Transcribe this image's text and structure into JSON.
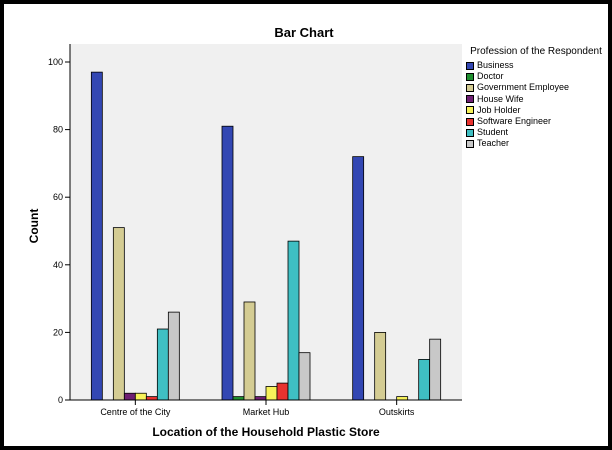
{
  "chart_data": {
    "type": "bar",
    "title": "Bar Chart",
    "xlabel": "Location of the Household Plastic Store",
    "ylabel": "Count",
    "ylim": [
      0,
      100
    ],
    "yticks": [
      "0",
      "20",
      "40",
      "60",
      "80",
      "100"
    ],
    "categories": [
      "Centre of the City",
      "Market Hub",
      "Outskirts"
    ],
    "grid": false,
    "legend_title": "Profession of the Respondent",
    "legend_position": "right",
    "series": [
      {
        "name": "Business",
        "color": "#3347b3",
        "values": [
          97,
          81,
          72
        ]
      },
      {
        "name": "Doctor",
        "color": "#1f8f2f",
        "values": [
          0,
          1,
          0
        ]
      },
      {
        "name": "Government Employee",
        "color": "#d4cc93",
        "values": [
          51,
          29,
          20
        ]
      },
      {
        "name": "House Wife",
        "color": "#6f1f72",
        "values": [
          2,
          1,
          0
        ]
      },
      {
        "name": "Job Holder",
        "color": "#f7f25a",
        "values": [
          2,
          4,
          1
        ]
      },
      {
        "name": "Software Engineer",
        "color": "#e8322f",
        "values": [
          1,
          5,
          0
        ]
      },
      {
        "name": "Student",
        "color": "#3fbfc3",
        "values": [
          21,
          47,
          12
        ]
      },
      {
        "name": "Teacher",
        "color": "#c8c8c8",
        "values": [
          26,
          14,
          18
        ]
      }
    ]
  }
}
